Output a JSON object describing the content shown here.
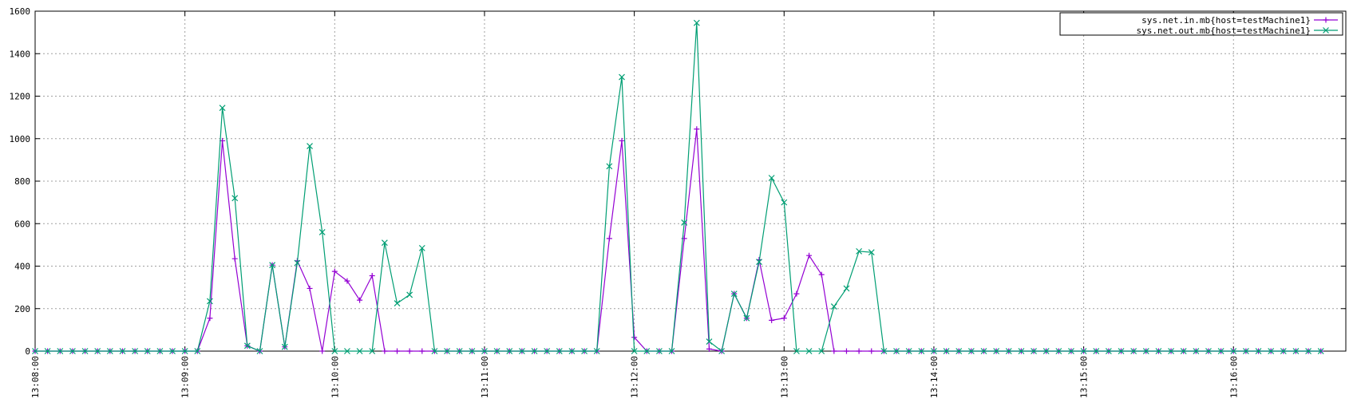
{
  "chart_data": {
    "type": "line",
    "title": "",
    "xlabel": "",
    "ylabel": "",
    "ylim": [
      0,
      1600
    ],
    "yticks": [
      0,
      200,
      400,
      600,
      800,
      1000,
      1200,
      1400,
      1600
    ],
    "ytick_labels": [
      "0",
      "200",
      "400",
      "600",
      "800",
      "1000",
      "1200",
      "1400",
      "1600"
    ],
    "xlim": [
      "13:08:00",
      "13:16:45"
    ],
    "xticks": [
      "13:08:00",
      "13:09:00",
      "13:10:00",
      "13:11:00",
      "13:12:00",
      "13:13:00",
      "13:14:00",
      "13:15:00",
      "13:16:00"
    ],
    "grid": true,
    "legend_position": "top-right",
    "x": [
      "13:08:00",
      "13:08:05",
      "13:08:10",
      "13:08:15",
      "13:08:20",
      "13:08:25",
      "13:08:30",
      "13:08:35",
      "13:08:40",
      "13:08:45",
      "13:08:50",
      "13:08:55",
      "13:09:00",
      "13:09:05",
      "13:09:10",
      "13:09:15",
      "13:09:20",
      "13:09:25",
      "13:09:30",
      "13:09:35",
      "13:09:40",
      "13:09:45",
      "13:09:50",
      "13:09:55",
      "13:10:00",
      "13:10:05",
      "13:10:10",
      "13:10:15",
      "13:10:20",
      "13:10:25",
      "13:10:30",
      "13:10:35",
      "13:10:40",
      "13:10:45",
      "13:10:50",
      "13:10:55",
      "13:11:00",
      "13:11:05",
      "13:11:10",
      "13:11:15",
      "13:11:20",
      "13:11:25",
      "13:11:30",
      "13:11:35",
      "13:11:40",
      "13:11:45",
      "13:11:50",
      "13:11:55",
      "13:12:00",
      "13:12:05",
      "13:12:10",
      "13:12:15",
      "13:12:20",
      "13:12:25",
      "13:12:30",
      "13:12:35",
      "13:12:40",
      "13:12:45",
      "13:12:50",
      "13:12:55",
      "13:13:00",
      "13:13:05",
      "13:13:10",
      "13:13:15",
      "13:13:20",
      "13:13:25",
      "13:13:30",
      "13:13:35",
      "13:13:40",
      "13:13:45",
      "13:13:50",
      "13:13:55",
      "13:14:00",
      "13:14:05",
      "13:14:10",
      "13:14:15",
      "13:14:20",
      "13:14:25",
      "13:14:30",
      "13:14:35",
      "13:14:40",
      "13:14:45",
      "13:14:50",
      "13:14:55",
      "13:15:00",
      "13:15:05",
      "13:15:10",
      "13:15:15",
      "13:15:20",
      "13:15:25",
      "13:15:30",
      "13:15:35",
      "13:15:40",
      "13:15:45",
      "13:15:50",
      "13:15:55",
      "13:16:00",
      "13:16:05",
      "13:16:10",
      "13:16:15",
      "13:16:20",
      "13:16:25",
      "13:16:30",
      "13:16:35"
    ],
    "series": [
      {
        "name": "sys.net.in.mb{host=testMachine1}",
        "color": "#9400d3",
        "marker": "plus",
        "values": [
          0,
          0,
          0,
          0,
          0,
          0,
          0,
          0,
          0,
          0,
          0,
          0,
          0,
          0,
          155,
          990,
          435,
          25,
          0,
          405,
          20,
          425,
          295,
          0,
          375,
          330,
          240,
          355,
          0,
          0,
          0,
          0,
          0,
          0,
          0,
          0,
          0,
          0,
          0,
          0,
          0,
          0,
          0,
          0,
          0,
          0,
          530,
          990,
          65,
          0,
          0,
          0,
          530,
          1045,
          10,
          0,
          270,
          155,
          430,
          145,
          155,
          270,
          450,
          360,
          0,
          0,
          0,
          0,
          0,
          0,
          0,
          0,
          0,
          0,
          0,
          0,
          0,
          0,
          0,
          0,
          0,
          0,
          0,
          0,
          0,
          0,
          0,
          0,
          0,
          0,
          0,
          0,
          0,
          0,
          0,
          0,
          0,
          0,
          0,
          0,
          0,
          0,
          0,
          0
        ]
      },
      {
        "name": "sys.net.out.mb{host=testMachine1}",
        "color": "#009e73",
        "marker": "cross",
        "values": [
          0,
          0,
          0,
          0,
          0,
          0,
          0,
          0,
          0,
          0,
          0,
          0,
          0,
          0,
          235,
          1145,
          720,
          25,
          0,
          405,
          20,
          415,
          965,
          560,
          0,
          0,
          0,
          0,
          510,
          225,
          265,
          485,
          0,
          0,
          0,
          0,
          0,
          0,
          0,
          0,
          0,
          0,
          0,
          0,
          0,
          0,
          870,
          1290,
          0,
          0,
          0,
          0,
          605,
          1545,
          45,
          0,
          270,
          155,
          420,
          815,
          700,
          0,
          0,
          0,
          210,
          295,
          470,
          465,
          0,
          0,
          0,
          0,
          0,
          0,
          0,
          0,
          0,
          0,
          0,
          0,
          0,
          0,
          0,
          0,
          0,
          0,
          0,
          0,
          0,
          0,
          0,
          0,
          0,
          0,
          0,
          0,
          0,
          0,
          0,
          0,
          0,
          0,
          0,
          0
        ]
      }
    ]
  }
}
